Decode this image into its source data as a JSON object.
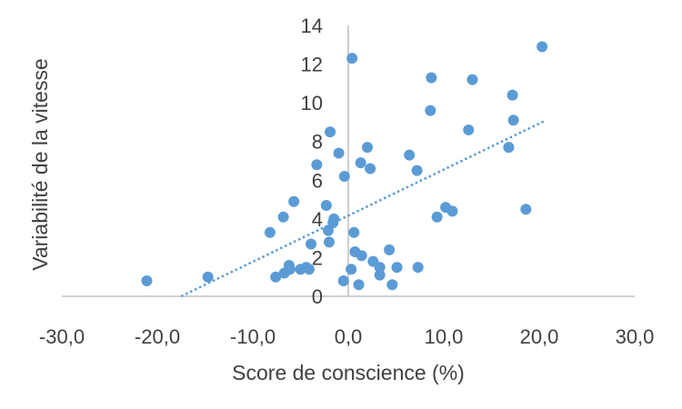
{
  "chart_data": {
    "type": "scatter",
    "title": "",
    "xlabel": "Score de conscience (%)",
    "ylabel": "Variabilité de la vitesse",
    "xlim": [
      -30,
      30
    ],
    "ylim": [
      0,
      14
    ],
    "xticks": [
      -30,
      -20,
      -10,
      0,
      10,
      20,
      30
    ],
    "xtick_labels": [
      "-30,0",
      "-20,0",
      "-10,0",
      "0,0",
      "10,0",
      "20,0",
      "30,0"
    ],
    "yticks": [
      0,
      2,
      4,
      6,
      8,
      10,
      12,
      14
    ],
    "ytick_labels": [
      "0",
      "2",
      "4",
      "6",
      "8",
      "10",
      "12",
      "14"
    ],
    "grid": false,
    "legend": "none",
    "marker_color": "#5b9bd5",
    "trendline": {
      "type": "linear",
      "style": "dotted",
      "color": "#5b9bd5",
      "x": [
        -17.5,
        20.5
      ],
      "y": [
        0,
        9.05
      ]
    },
    "points": [
      {
        "x": -21.1,
        "y": 0.8
      },
      {
        "x": -14.7,
        "y": 1.0
      },
      {
        "x": -8.2,
        "y": 3.3
      },
      {
        "x": -7.6,
        "y": 1.0
      },
      {
        "x": -6.8,
        "y": 4.1
      },
      {
        "x": -6.7,
        "y": 1.2
      },
      {
        "x": -6.2,
        "y": 1.6
      },
      {
        "x": -6.1,
        "y": 1.4
      },
      {
        "x": -5.7,
        "y": 4.9
      },
      {
        "x": -5.0,
        "y": 1.4
      },
      {
        "x": -4.4,
        "y": 1.5
      },
      {
        "x": -4.1,
        "y": 1.4
      },
      {
        "x": -3.9,
        "y": 2.7
      },
      {
        "x": -3.3,
        "y": 6.8
      },
      {
        "x": -2.3,
        "y": 4.7
      },
      {
        "x": -2.1,
        "y": 3.4
      },
      {
        "x": -2.0,
        "y": 2.8
      },
      {
        "x": -1.9,
        "y": 8.5
      },
      {
        "x": -1.6,
        "y": 3.8
      },
      {
        "x": -1.5,
        "y": 4.0
      },
      {
        "x": -1.0,
        "y": 7.4
      },
      {
        "x": -0.5,
        "y": 0.8
      },
      {
        "x": -0.4,
        "y": 6.2
      },
      {
        "x": 0.3,
        "y": 1.4
      },
      {
        "x": 0.4,
        "y": 12.3
      },
      {
        "x": 0.6,
        "y": 3.3
      },
      {
        "x": 0.7,
        "y": 2.3
      },
      {
        "x": 1.1,
        "y": 0.6
      },
      {
        "x": 1.3,
        "y": 6.9
      },
      {
        "x": 1.4,
        "y": 2.1
      },
      {
        "x": 2.0,
        "y": 7.7
      },
      {
        "x": 2.3,
        "y": 6.6
      },
      {
        "x": 2.6,
        "y": 1.8
      },
      {
        "x": 3.3,
        "y": 1.5
      },
      {
        "x": 3.3,
        "y": 1.1
      },
      {
        "x": 4.3,
        "y": 2.4
      },
      {
        "x": 4.6,
        "y": 0.6
      },
      {
        "x": 5.1,
        "y": 1.5
      },
      {
        "x": 6.4,
        "y": 7.3
      },
      {
        "x": 7.2,
        "y": 6.5
      },
      {
        "x": 7.3,
        "y": 1.5
      },
      {
        "x": 8.6,
        "y": 9.6
      },
      {
        "x": 8.7,
        "y": 11.3
      },
      {
        "x": 9.3,
        "y": 4.1
      },
      {
        "x": 10.2,
        "y": 4.6
      },
      {
        "x": 10.9,
        "y": 4.4
      },
      {
        "x": 12.6,
        "y": 8.6
      },
      {
        "x": 13.0,
        "y": 11.2
      },
      {
        "x": 16.8,
        "y": 7.7
      },
      {
        "x": 17.2,
        "y": 10.4
      },
      {
        "x": 17.3,
        "y": 9.1
      },
      {
        "x": 18.6,
        "y": 4.5
      },
      {
        "x": 20.3,
        "y": 12.9
      }
    ]
  }
}
